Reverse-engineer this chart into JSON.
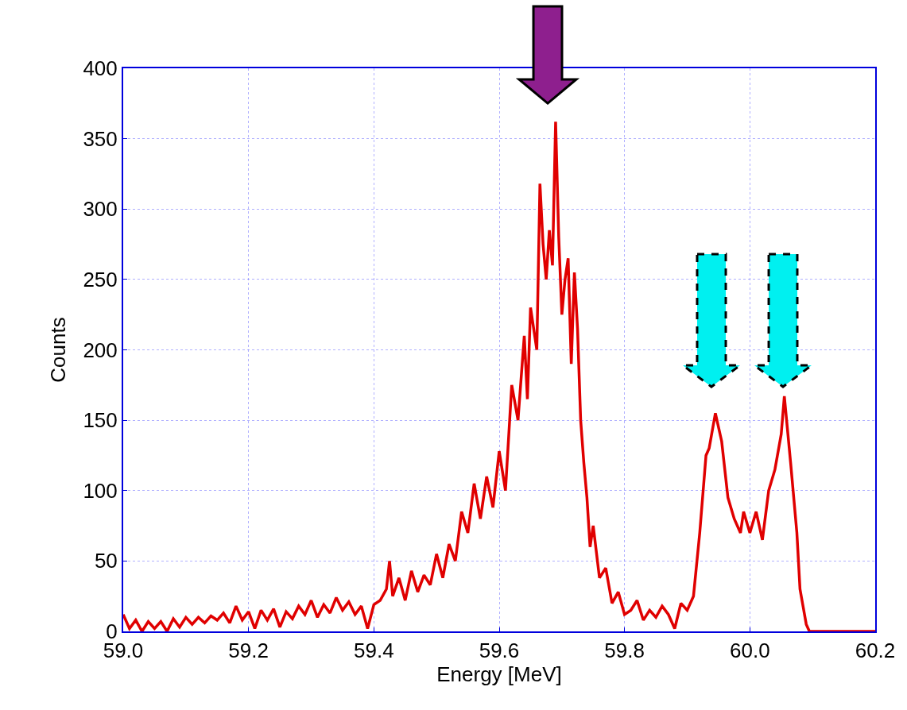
{
  "chart_data": {
    "type": "line",
    "xlabel": "Energy [MeV]",
    "ylabel": "Counts",
    "x": [
      59.0,
      59.01,
      59.02,
      59.03,
      59.04,
      59.05,
      59.06,
      59.07,
      59.08,
      59.09,
      59.1,
      59.11,
      59.12,
      59.13,
      59.14,
      59.15,
      59.16,
      59.17,
      59.18,
      59.19,
      59.2,
      59.21,
      59.22,
      59.23,
      59.24,
      59.25,
      59.26,
      59.27,
      59.28,
      59.29,
      59.3,
      59.31,
      59.32,
      59.33,
      59.34,
      59.35,
      59.36,
      59.37,
      59.38,
      59.39,
      59.4,
      59.41,
      59.42,
      59.425,
      59.43,
      59.44,
      59.45,
      59.46,
      59.47,
      59.48,
      59.49,
      59.5,
      59.51,
      59.52,
      59.53,
      59.54,
      59.55,
      59.56,
      59.57,
      59.58,
      59.59,
      59.6,
      59.61,
      59.62,
      59.63,
      59.64,
      59.645,
      59.65,
      59.66,
      59.665,
      59.67,
      59.675,
      59.68,
      59.685,
      59.69,
      59.695,
      59.7,
      59.705,
      59.71,
      59.715,
      59.72,
      59.725,
      59.73,
      59.735,
      59.74,
      59.745,
      59.75,
      59.76,
      59.77,
      59.78,
      59.79,
      59.8,
      59.81,
      59.82,
      59.83,
      59.84,
      59.85,
      59.86,
      59.87,
      59.88,
      59.89,
      59.9,
      59.91,
      59.92,
      59.93,
      59.935,
      59.945,
      59.955,
      59.965,
      59.975,
      59.985,
      59.99,
      60.0,
      60.01,
      60.02,
      60.03,
      60.04,
      60.05,
      60.055,
      60.065,
      60.075,
      60.08,
      60.09,
      60.095,
      60.2
    ],
    "series": [
      {
        "color": "#e00000",
        "values": [
          12,
          2,
          8,
          0,
          7,
          2,
          7,
          0,
          9,
          3,
          10,
          5,
          10,
          6,
          11,
          8,
          13,
          6,
          18,
          8,
          14,
          2,
          15,
          8,
          16,
          3,
          14,
          9,
          18,
          12,
          22,
          10,
          19,
          13,
          24,
          15,
          21,
          12,
          18,
          2,
          19,
          22,
          30,
          50,
          25,
          38,
          22,
          43,
          28,
          40,
          33,
          55,
          38,
          62,
          50,
          85,
          70,
          105,
          80,
          110,
          88,
          128,
          100,
          175,
          150,
          210,
          165,
          230,
          200,
          318,
          275,
          250,
          285,
          260,
          362,
          280,
          225,
          250,
          265,
          190,
          255,
          215,
          150,
          120,
          95,
          60,
          75,
          38,
          45,
          20,
          28,
          12,
          15,
          22,
          8,
          15,
          10,
          18,
          12,
          2,
          20,
          15,
          25,
          70,
          125,
          130,
          155,
          135,
          95,
          80,
          70,
          85,
          70,
          85,
          65,
          100,
          115,
          140,
          167,
          120,
          70,
          30,
          5,
          0,
          0
        ]
      }
    ],
    "xlim": [
      59.0,
      60.2
    ],
    "ylim": [
      0,
      400
    ],
    "xticks": [
      {
        "value": 59.0,
        "label": "59.0"
      },
      {
        "value": 59.2,
        "label": "59.2"
      },
      {
        "value": 59.4,
        "label": "59.4"
      },
      {
        "value": 59.6,
        "label": "59.6"
      },
      {
        "value": 59.8,
        "label": "59.8"
      },
      {
        "value": 60.0,
        "label": "60.0"
      },
      {
        "value": 60.2,
        "label": "60.2"
      }
    ],
    "yticks": [
      0,
      50,
      100,
      150,
      200,
      250,
      300,
      350,
      400
    ],
    "grid": true,
    "marker": "none",
    "line_style": "solid"
  }
}
